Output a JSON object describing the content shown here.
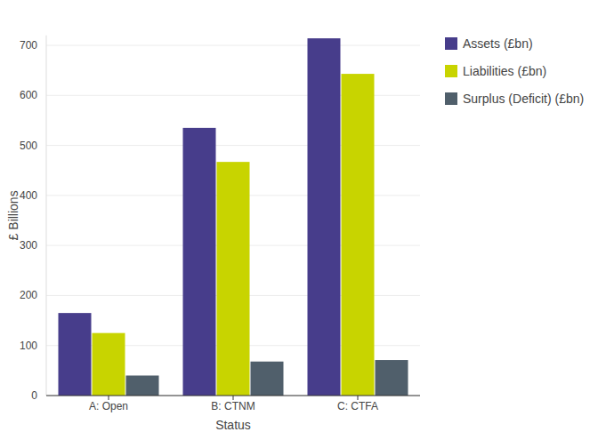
{
  "chart_data": {
    "type": "bar",
    "x_label": "Status",
    "y_label": "£ Billions",
    "categories": [
      "A: Open",
      "B: CTNM",
      "C: CTFA"
    ],
    "series": [
      {
        "name": "Assets (£bn)",
        "color": "#473d8b",
        "values": [
          165,
          535,
          714
        ]
      },
      {
        "name": "Liabilities (£bn)",
        "color": "#c8d400",
        "values": [
          125,
          467,
          643
        ]
      },
      {
        "name": "Surplus (Deficit) (£bn)",
        "color": "#505f6b",
        "values": [
          40,
          68,
          71
        ]
      }
    ],
    "ylim": [
      0,
      720
    ],
    "yticks": [
      0,
      100,
      200,
      300,
      400,
      500,
      600,
      700
    ],
    "grid": true,
    "legend": "right"
  }
}
